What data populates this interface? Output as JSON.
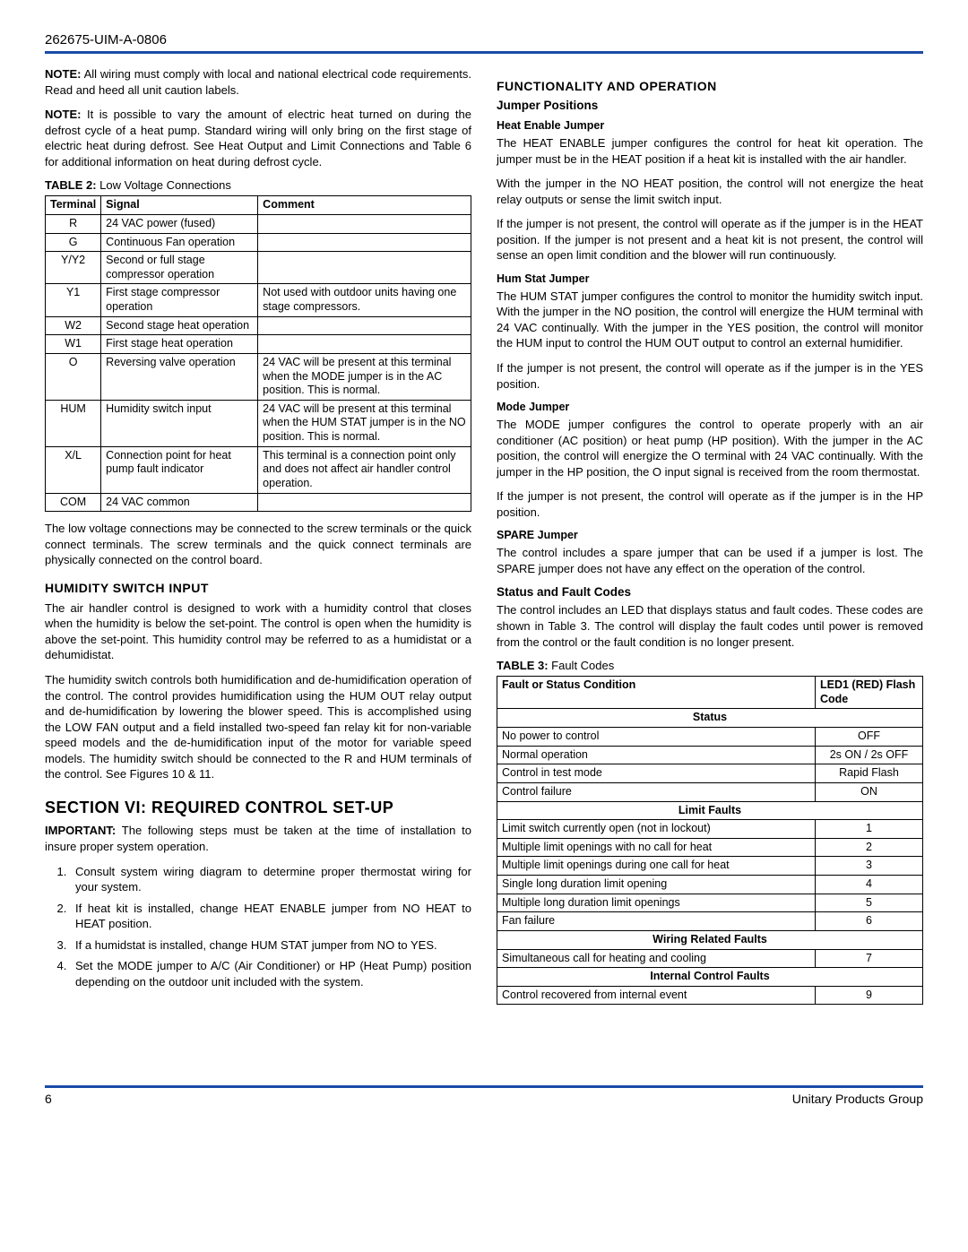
{
  "colors": {
    "rule": "#1a4ba8",
    "text": "#000000",
    "bg": "#ffffff",
    "border": "#000000"
  },
  "header": {
    "doc_id": "262675-UIM-A-0806"
  },
  "left": {
    "note1_label": "NOTE:",
    "note1": " All wiring must comply with local and national electrical code requirements. Read and heed all unit caution labels.",
    "note2_label": "NOTE:",
    "note2": " It is possible to vary the amount of electric heat turned on during the defrost cycle of a heat pump. Standard wiring will only bring on the first stage of electric heat during defrost. See Heat Output and Limit Connections and Table 6 for additional information on heat during defrost cycle.",
    "table2_caption_label": "TABLE 2:",
    "table2_caption": " Low Voltage Connections",
    "table2": {
      "headers": [
        "Terminal",
        "Signal",
        "Comment"
      ],
      "rows": [
        [
          "R",
          "24 VAC power (fused)",
          ""
        ],
        [
          "G",
          "Continuous Fan operation",
          ""
        ],
        [
          "Y/Y2",
          "Second or full stage compressor operation",
          ""
        ],
        [
          "Y1",
          "First stage compressor operation",
          "Not used with outdoor units having one stage compressors."
        ],
        [
          "W2",
          "Second stage heat operation",
          ""
        ],
        [
          "W1",
          "First stage heat operation",
          ""
        ],
        [
          "O",
          "Reversing valve operation",
          "24 VAC will be present at this terminal when the MODE jumper is in the AC position. This is normal."
        ],
        [
          "HUM",
          "Humidity switch input",
          "24 VAC will be present at this terminal when the HUM STAT jumper is in the NO position. This is normal."
        ],
        [
          "X/L",
          "Connection point for heat pump fault indicator",
          "This terminal is a connection point only and does not affect air handler control operation."
        ],
        [
          "COM",
          "24 VAC common",
          ""
        ]
      ]
    },
    "table2_after": "The low voltage connections may be connected to the screw terminals or the quick connect terminals. The screw terminals and the quick connect terminals are physically connected on the control board.",
    "hsi_title": "HUMIDITY SWITCH INPUT",
    "hsi_p1": "The air handler control is designed to work with a humidity control that closes when the humidity is below the set-point. The control is open when the humidity is above the set-point. This humidity control may be referred to as a humidistat or a dehumidistat.",
    "hsi_p2": "The humidity switch controls both humidification and de-humidification operation of the control. The control provides humidification using the HUM OUT relay output and de-humidification by lowering the blower speed. This is accomplished using the LOW FAN output and a field installed two-speed fan relay kit for non-variable speed models and the de-humidification input of the motor for variable speed models. The humidity switch should be connected to the R and HUM terminals of the control. See Figures 10 & 11.",
    "section_vi": "SECTION VI: REQUIRED CONTROL SET-UP",
    "important_label": "IMPORTANT:",
    "important": " The following steps must be taken at the time of installation to insure proper system operation.",
    "steps": [
      "Consult system wiring diagram to determine proper thermostat wiring for your system.",
      "If heat kit is installed, change HEAT ENABLE jumper from NO HEAT to HEAT position.",
      "If a humidstat is installed, change HUM STAT jumper from NO to YES.",
      "Set the MODE jumper to A/C (Air Conditioner) or HP (Heat Pump) position depending on the outdoor unit included with the system."
    ]
  },
  "right": {
    "func_title": "FUNCTIONALITY AND OPERATION",
    "jumper_positions": "Jumper Positions",
    "heat_enable": "Heat Enable Jumper",
    "he_p1": "The HEAT ENABLE jumper configures the control for heat kit operation. The jumper must be in the HEAT position if a heat kit is installed with the air handler.",
    "he_p2": "With the jumper in the NO HEAT position, the control will not energize the heat relay outputs or sense the limit switch input.",
    "he_p3": "If the jumper is not present, the control will operate as if the jumper is in the HEAT position. If the jumper is not present and a heat kit is not present, the control will sense an open limit condition and the blower will run continuously.",
    "hum_stat": "Hum Stat Jumper",
    "hs_p1": "The HUM STAT jumper configures the control to monitor the humidity switch input. With the jumper in the NO position, the control will energize the HUM terminal with 24 VAC continually. With the jumper in the YES position, the control will monitor the HUM input to control the HUM OUT output to control an external humidifier.",
    "hs_p2": "If the jumper is not present, the control will operate as if the jumper is in the YES position.",
    "mode_jumper": "Mode Jumper",
    "mj_p1": "The MODE jumper configures the control to operate properly with an air conditioner (AC position) or heat pump (HP position). With the jumper in the AC position, the control will energize the O terminal with 24 VAC continually. With the jumper in the HP position, the O input signal is received from the room thermostat.",
    "mj_p2": "If the jumper is not present, the control will operate as if the jumper is in the HP position.",
    "spare_jumper": "SPARE Jumper",
    "sj_p1": "The control includes a spare jumper that can be used if a jumper is lost. The SPARE jumper does not have any effect on the operation of the control.",
    "status_codes": "Status and Fault Codes",
    "sc_p1": "The control includes an LED that displays status and fault codes. These codes are shown in Table 3. The control will display the fault codes until power is removed from the control or the fault condition is no longer present.",
    "table3_caption_label": "TABLE 3:",
    "table3_caption": " Fault Codes",
    "table3": {
      "headers": [
        "Fault or Status Condition",
        "LED1 (RED) Flash Code"
      ],
      "sections": [
        {
          "title": "Status",
          "rows": [
            [
              "No power to control",
              "OFF"
            ],
            [
              "Normal operation",
              "2s ON / 2s OFF"
            ],
            [
              "Control in test mode",
              "Rapid Flash"
            ],
            [
              "Control failure",
              "ON"
            ]
          ]
        },
        {
          "title": "Limit Faults",
          "rows": [
            [
              "Limit switch currently open (not in lockout)",
              "1"
            ],
            [
              "Multiple limit openings with no call for heat",
              "2"
            ],
            [
              "Multiple limit openings during one call for heat",
              "3"
            ],
            [
              "Single long duration limit opening",
              "4"
            ],
            [
              "Multiple long duration limit openings",
              "5"
            ],
            [
              "Fan failure",
              "6"
            ]
          ]
        },
        {
          "title": "Wiring Related Faults",
          "rows": [
            [
              "Simultaneous call for heating and cooling",
              "7"
            ]
          ]
        },
        {
          "title": "Internal Control Faults",
          "rows": [
            [
              "Control recovered from internal event",
              "9"
            ]
          ]
        }
      ]
    }
  },
  "footer": {
    "page": "6",
    "org": "Unitary Products Group"
  }
}
